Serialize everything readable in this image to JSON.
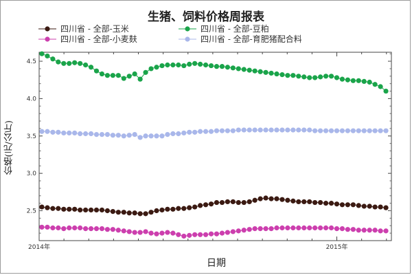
{
  "chart_data": {
    "type": "line",
    "title": "生猪、饲料价格周报表",
    "xlabel": "日期",
    "ylabel": "价格(元/公斤)",
    "x_tick_labels": [
      "2014年",
      "2015年"
    ],
    "y_ticks": [
      2.5,
      3.0,
      3.5,
      4.0,
      4.5
    ],
    "y_tick_labels": [
      "2.5",
      "3.0",
      "3.5",
      "4.0",
      "4.5"
    ],
    "ylim": [
      2.1,
      4.62
    ],
    "legend_position": "top",
    "series": [
      {
        "name": "四川省 - 全部-玉米",
        "color": "#3b1a12",
        "values": [
          2.55,
          2.54,
          2.53,
          2.53,
          2.52,
          2.52,
          2.52,
          2.51,
          2.51,
          2.51,
          2.51,
          2.51,
          2.5,
          2.49,
          2.48,
          2.48,
          2.47,
          2.47,
          2.46,
          2.46,
          2.48,
          2.5,
          2.51,
          2.52,
          2.52,
          2.53,
          2.53,
          2.54,
          2.55,
          2.57,
          2.58,
          2.59,
          2.61,
          2.61,
          2.62,
          2.62,
          2.61,
          2.61,
          2.62,
          2.64,
          2.66,
          2.67,
          2.66,
          2.66,
          2.65,
          2.64,
          2.63,
          2.62,
          2.62,
          2.62,
          2.61,
          2.61,
          2.6,
          2.6,
          2.59,
          2.58,
          2.58,
          2.58,
          2.57,
          2.56,
          2.56,
          2.55,
          2.55,
          2.54
        ]
      },
      {
        "name": "四川省 - 全部-豆粕",
        "color": "#1aa44a",
        "values": [
          4.6,
          4.57,
          4.53,
          4.49,
          4.47,
          4.47,
          4.48,
          4.47,
          4.45,
          4.42,
          4.37,
          4.33,
          4.31,
          4.31,
          4.31,
          4.27,
          4.3,
          4.33,
          4.26,
          4.35,
          4.4,
          4.42,
          4.44,
          4.45,
          4.45,
          4.45,
          4.44,
          4.46,
          4.47,
          4.46,
          4.45,
          4.44,
          4.43,
          4.43,
          4.42,
          4.41,
          4.4,
          4.39,
          4.38,
          4.37,
          4.36,
          4.35,
          4.34,
          4.33,
          4.32,
          4.31,
          4.31,
          4.3,
          4.29,
          4.28,
          4.28,
          4.29,
          4.3,
          4.3,
          4.28,
          4.26,
          4.25,
          4.24,
          4.24,
          4.23,
          4.22,
          4.19,
          4.16,
          4.1
        ]
      },
      {
        "name": "四川省 - 全部-小麦麸",
        "color": "#cc3fae",
        "values": [
          2.28,
          2.28,
          2.27,
          2.27,
          2.26,
          2.27,
          2.27,
          2.27,
          2.26,
          2.26,
          2.26,
          2.26,
          2.25,
          2.25,
          2.24,
          2.23,
          2.22,
          2.21,
          2.21,
          2.22,
          2.2,
          2.19,
          2.2,
          2.21,
          2.2,
          2.18,
          2.16,
          2.17,
          2.18,
          2.18,
          2.18,
          2.19,
          2.19,
          2.2,
          2.21,
          2.22,
          2.23,
          2.24,
          2.25,
          2.26,
          2.26,
          2.26,
          2.26,
          2.27,
          2.27,
          2.27,
          2.27,
          2.27,
          2.27,
          2.27,
          2.27,
          2.27,
          2.27,
          2.27,
          2.26,
          2.26,
          2.25,
          2.25,
          2.24,
          2.24,
          2.24,
          2.24,
          2.23,
          2.23
        ]
      },
      {
        "name": "四川省 - 全部-育肥猪配合料",
        "color": "#a9b7ea",
        "values": [
          3.56,
          3.56,
          3.55,
          3.55,
          3.54,
          3.54,
          3.54,
          3.53,
          3.53,
          3.53,
          3.52,
          3.52,
          3.52,
          3.51,
          3.51,
          3.5,
          3.51,
          3.52,
          3.48,
          3.5,
          3.5,
          3.5,
          3.5,
          3.52,
          3.53,
          3.53,
          3.54,
          3.55,
          3.55,
          3.56,
          3.56,
          3.56,
          3.57,
          3.57,
          3.57,
          3.57,
          3.58,
          3.58,
          3.58,
          3.58,
          3.58,
          3.58,
          3.58,
          3.58,
          3.58,
          3.58,
          3.58,
          3.58,
          3.58,
          3.58,
          3.57,
          3.57,
          3.57,
          3.57,
          3.57,
          3.57,
          3.57,
          3.57,
          3.57,
          3.57,
          3.57,
          3.57,
          3.57,
          3.57
        ]
      }
    ]
  }
}
